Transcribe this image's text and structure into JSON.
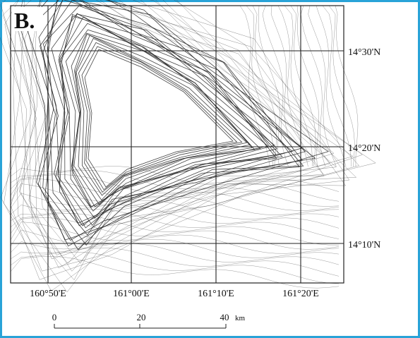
{
  "panel_label": "B.",
  "latitude_labels": [
    "14°30'N",
    "14°20'N",
    "14°10'N"
  ],
  "longitude_labels": [
    "160°50'E",
    "161°00'E",
    "161°10'E",
    "161°20'E"
  ],
  "scale_bar": {
    "ticks": [
      0,
      20,
      40
    ],
    "unit": "km"
  }
}
